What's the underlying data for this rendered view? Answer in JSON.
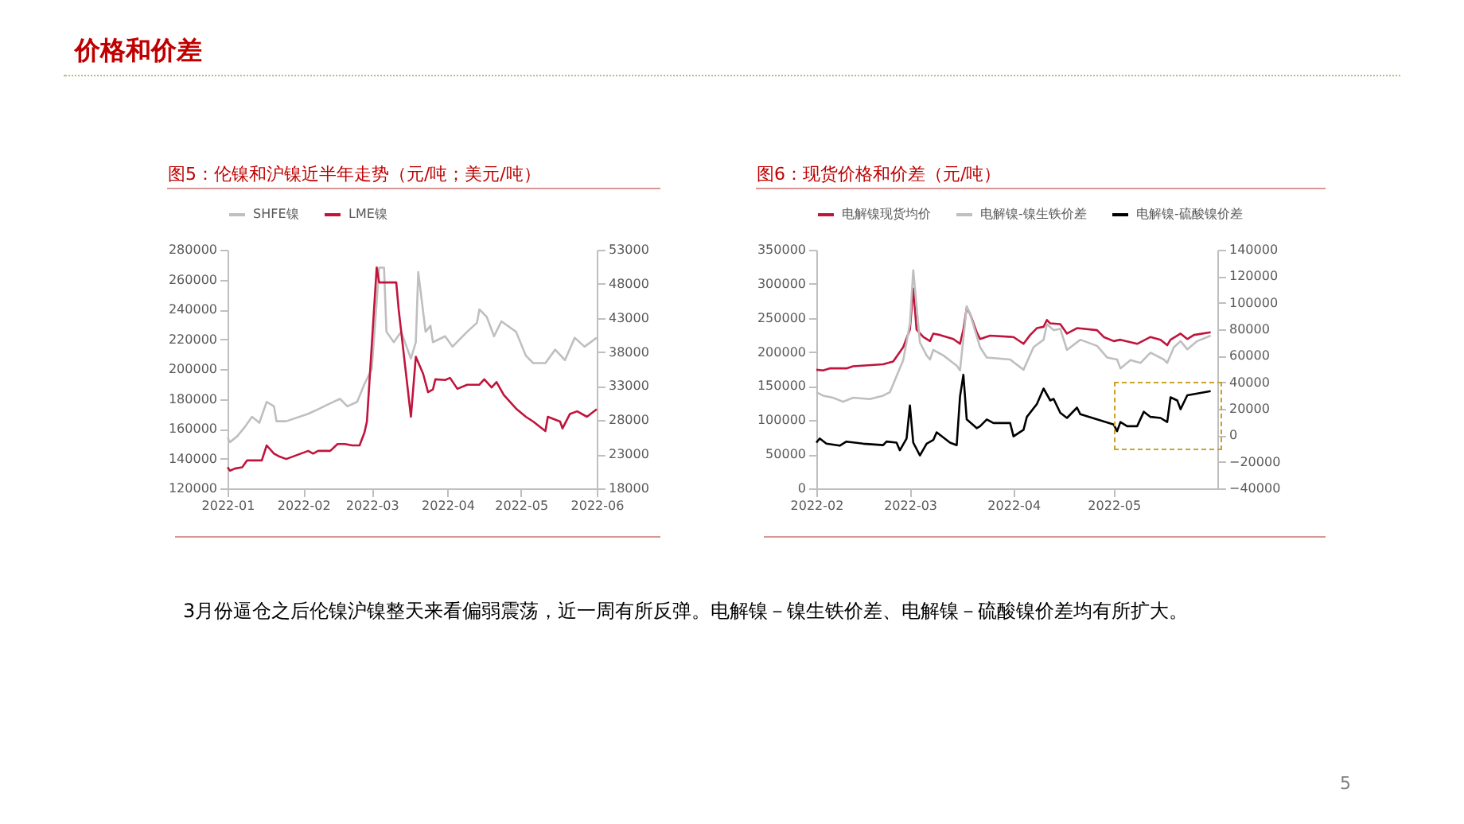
{
  "chart_data": [
    {
      "type": "line",
      "title": "图5：伦镍和沪镍近半年走势（元/吨；美元/吨）",
      "annotations": [
        "价格和价差",
        "3月份逼仓之后伦镍沪镍整天来看偏弱震荡，近一周有所反弹。电解镍－镍生铁价差、电解镍－硫酸镍价差均有所扩大。"
      ],
      "xlim": [
        "2022-01-01",
        "2022-06-01"
      ],
      "xticks": [
        "2022-01",
        "2022-02",
        "2022-03",
        "2022-04",
        "2022-05",
        "2022-06"
      ],
      "ylim": [
        120000,
        280000
      ],
      "yticks": [
        120000,
        140000,
        160000,
        180000,
        200000,
        220000,
        240000,
        260000,
        280000
      ],
      "y2lim": [
        18000,
        53000
      ],
      "y2ticks": [
        18000,
        23000,
        28000,
        33000,
        38000,
        43000,
        48000,
        53000
      ],
      "legend": "top",
      "grid": false,
      "series": [
        {
          "name": "SHFE镍",
          "color": "#bfbfbf",
          "x": [
            "2022-01-01",
            "2022-01-02",
            "2022-01-05",
            "2022-01-08",
            "2022-01-11",
            "2022-01-14",
            "2022-01-17",
            "2022-01-20",
            "2022-01-21",
            "2022-01-25",
            "2022-02-03",
            "2022-02-07",
            "2022-02-12",
            "2022-02-16",
            "2022-02-19",
            "2022-02-23",
            "2022-02-26",
            "2022-03-01",
            "2022-03-04",
            "2022-03-06",
            "2022-03-07",
            "2022-03-10",
            "2022-03-13",
            "2022-03-17",
            "2022-03-19",
            "2022-03-20",
            "2022-03-23",
            "2022-03-25",
            "2022-03-26",
            "2022-03-31",
            "2022-04-03",
            "2022-04-09",
            "2022-04-13",
            "2022-04-14",
            "2022-04-17",
            "2022-04-20",
            "2022-04-23",
            "2022-04-29",
            "2022-05-03",
            "2022-05-06",
            "2022-05-11",
            "2022-05-15",
            "2022-05-19",
            "2022-05-23",
            "2022-05-27",
            "2022-06-01"
          ],
          "values": [
            154000,
            151000,
            155000,
            161000,
            168000,
            164000,
            178000,
            175000,
            165000,
            165000,
            170000,
            173000,
            177000,
            180000,
            175000,
            178000,
            190000,
            200000,
            268000,
            268000,
            225000,
            218000,
            225000,
            207000,
            218000,
            265000,
            225000,
            229000,
            218000,
            222000,
            215000,
            225000,
            231000,
            240000,
            235000,
            222000,
            232000,
            225000,
            209000,
            204000,
            204000,
            213000,
            206000,
            221000,
            215000,
            221000
          ]
        },
        {
          "name": "LME镍",
          "color": "#c0143c",
          "axis": "y2",
          "x": [
            "2022-01-01",
            "2022-01-02",
            "2022-01-04",
            "2022-01-07",
            "2022-01-09",
            "2022-01-15",
            "2022-01-17",
            "2022-01-20",
            "2022-01-22",
            "2022-01-25",
            "2022-02-03",
            "2022-02-05",
            "2022-02-07",
            "2022-02-12",
            "2022-02-15",
            "2022-02-18",
            "2022-02-21",
            "2022-02-24",
            "2022-02-26",
            "2022-02-27",
            "2022-03-03",
            "2022-03-04",
            "2022-03-11",
            "2022-03-12",
            "2022-03-17",
            "2022-03-19",
            "2022-03-22",
            "2022-03-24",
            "2022-03-26",
            "2022-03-27",
            "2022-03-31",
            "2022-04-02",
            "2022-04-05",
            "2022-04-09",
            "2022-04-14",
            "2022-04-16",
            "2022-04-19",
            "2022-04-21",
            "2022-04-24",
            "2022-04-29",
            "2022-05-03",
            "2022-05-06",
            "2022-05-11",
            "2022-05-12",
            "2022-05-17",
            "2022-05-18",
            "2022-05-21",
            "2022-05-24",
            "2022-05-28",
            "2022-06-01"
          ],
          "values": [
            21100,
            20600,
            20900,
            21100,
            22100,
            22100,
            24300,
            23100,
            22700,
            22300,
            23500,
            23100,
            23500,
            23500,
            24500,
            24500,
            24300,
            24300,
            26200,
            27800,
            50400,
            48200,
            48200,
            44200,
            28500,
            37300,
            34800,
            32100,
            32500,
            34000,
            33900,
            34200,
            32600,
            33200,
            33200,
            34000,
            32800,
            33600,
            31700,
            29700,
            28500,
            27800,
            26400,
            28500,
            27800,
            26800,
            28900,
            29300,
            28500,
            29600
          ]
        }
      ]
    },
    {
      "type": "line",
      "title": "图6：现货价格和价差（元/吨）",
      "annotations": [
        "5"
      ],
      "xlim": [
        "2022-02-01",
        "2022-06-01"
      ],
      "xticks": [
        "2022-02",
        "2022-03",
        "2022-04",
        "2022-05"
      ],
      "ylim": [
        0,
        350000
      ],
      "yticks": [
        0,
        50000,
        100000,
        150000,
        200000,
        250000,
        300000,
        350000
      ],
      "y2lim": [
        -40000,
        140000
      ],
      "y2ticks": [
        -40000,
        -20000,
        0,
        20000,
        40000,
        60000,
        80000,
        100000,
        120000,
        140000
      ],
      "legend": "top",
      "grid": false,
      "series": [
        {
          "name": "电解镍现货均价",
          "color": "#c0143c",
          "x": [
            "2022-02-01",
            "2022-02-03",
            "2022-02-05",
            "2022-02-10",
            "2022-02-12",
            "2022-02-21",
            "2022-02-24",
            "2022-02-27",
            "2022-03-01",
            "2022-03-02",
            "2022-03-03",
            "2022-03-05",
            "2022-03-07",
            "2022-03-08",
            "2022-03-10",
            "2022-03-14",
            "2022-03-16",
            "2022-03-17",
            "2022-03-18",
            "2022-03-19",
            "2022-03-21",
            "2022-03-22",
            "2022-03-25",
            "2022-04-01",
            "2022-04-04",
            "2022-04-06",
            "2022-04-08",
            "2022-04-10",
            "2022-04-11",
            "2022-04-12",
            "2022-04-15",
            "2022-04-17",
            "2022-04-20",
            "2022-04-26",
            "2022-04-28",
            "2022-05-01",
            "2022-05-03",
            "2022-05-08",
            "2022-05-12",
            "2022-05-15",
            "2022-05-17",
            "2022-05-18",
            "2022-05-21",
            "2022-05-23",
            "2022-05-25",
            "2022-05-30"
          ],
          "values": [
            174000,
            173000,
            176000,
            176000,
            179000,
            182000,
            186000,
            207000,
            233000,
            293000,
            233000,
            222000,
            216000,
            227000,
            225000,
            219000,
            212000,
            233000,
            265000,
            256000,
            229000,
            219000,
            224000,
            222000,
            212000,
            225000,
            235000,
            237000,
            247000,
            242000,
            241000,
            227000,
            235000,
            232000,
            222000,
            216000,
            218000,
            212000,
            222000,
            218000,
            210000,
            218000,
            227000,
            219000,
            225000,
            229000
          ]
        },
        {
          "name": "电解镍-镍生铁价差",
          "color": "#bfbfbf",
          "x": [
            "2022-02-01",
            "2022-02-03",
            "2022-02-06",
            "2022-02-09",
            "2022-02-12",
            "2022-02-17",
            "2022-02-21",
            "2022-02-23",
            "2022-02-27",
            "2022-03-01",
            "2022-03-02",
            "2022-03-04",
            "2022-03-06",
            "2022-03-07",
            "2022-03-08",
            "2022-03-11",
            "2022-03-15",
            "2022-03-16",
            "2022-03-18",
            "2022-03-19",
            "2022-03-22",
            "2022-03-24",
            "2022-03-31",
            "2022-04-04",
            "2022-04-07",
            "2022-04-10",
            "2022-04-11",
            "2022-04-13",
            "2022-04-15",
            "2022-04-17",
            "2022-04-21",
            "2022-04-26",
            "2022-04-29",
            "2022-05-02",
            "2022-05-03",
            "2022-05-06",
            "2022-05-09",
            "2022-05-12",
            "2022-05-16",
            "2022-05-17",
            "2022-05-19",
            "2022-05-21",
            "2022-05-23",
            "2022-05-26",
            "2022-05-30"
          ],
          "values": [
            141000,
            136000,
            133000,
            127000,
            133000,
            131000,
            136000,
            141000,
            188000,
            241000,
            320000,
            214000,
            195000,
            189000,
            203000,
            195000,
            180000,
            173000,
            267000,
            256000,
            207000,
            192000,
            189000,
            174000,
            207000,
            218000,
            241000,
            232000,
            234000,
            203000,
            218000,
            209000,
            192000,
            189000,
            176000,
            188000,
            184000,
            199000,
            189000,
            184000,
            207000,
            216000,
            204000,
            216000,
            224000
          ]
        },
        {
          "name": "电解镍-硫酸镍价差",
          "color": "#000000",
          "axis": "y2",
          "x": [
            "2022-02-01",
            "2022-02-02",
            "2022-02-04",
            "2022-02-08",
            "2022-02-10",
            "2022-02-15",
            "2022-02-21",
            "2022-02-22",
            "2022-02-25",
            "2022-02-26",
            "2022-02-28",
            "2022-03-01",
            "2022-03-02",
            "2022-03-04",
            "2022-03-06",
            "2022-03-08",
            "2022-03-09",
            "2022-03-13",
            "2022-03-15",
            "2022-03-16",
            "2022-03-17",
            "2022-03-18",
            "2022-03-21",
            "2022-03-22",
            "2022-03-24",
            "2022-03-26",
            "2022-03-31",
            "2022-04-01",
            "2022-04-04",
            "2022-04-05",
            "2022-04-08",
            "2022-04-10",
            "2022-04-12",
            "2022-04-13",
            "2022-04-15",
            "2022-04-17",
            "2022-04-20",
            "2022-04-21",
            "2022-05-01",
            "2022-05-02",
            "2022-05-03",
            "2022-05-05",
            "2022-05-08",
            "2022-05-10",
            "2022-05-12",
            "2022-05-15",
            "2022-05-17",
            "2022-05-18",
            "2022-05-20",
            "2022-05-21",
            "2022-05-23",
            "2022-05-30"
          ],
          "values": [
            -5500,
            -2400,
            -6300,
            -7800,
            -4700,
            -6300,
            -7400,
            -4700,
            -5500,
            -11300,
            -2400,
            22500,
            -5500,
            -15200,
            -6300,
            -3500,
            2300,
            -5500,
            -7400,
            29400,
            45700,
            12000,
            5400,
            6900,
            12000,
            9300,
            9300,
            -800,
            4200,
            13900,
            23600,
            35300,
            26300,
            27500,
            17000,
            13100,
            20900,
            15900,
            8100,
            3100,
            10000,
            6900,
            6900,
            17800,
            13900,
            13100,
            10000,
            28700,
            26300,
            19700,
            30200,
            33300
          ]
        }
      ]
    }
  ]
}
